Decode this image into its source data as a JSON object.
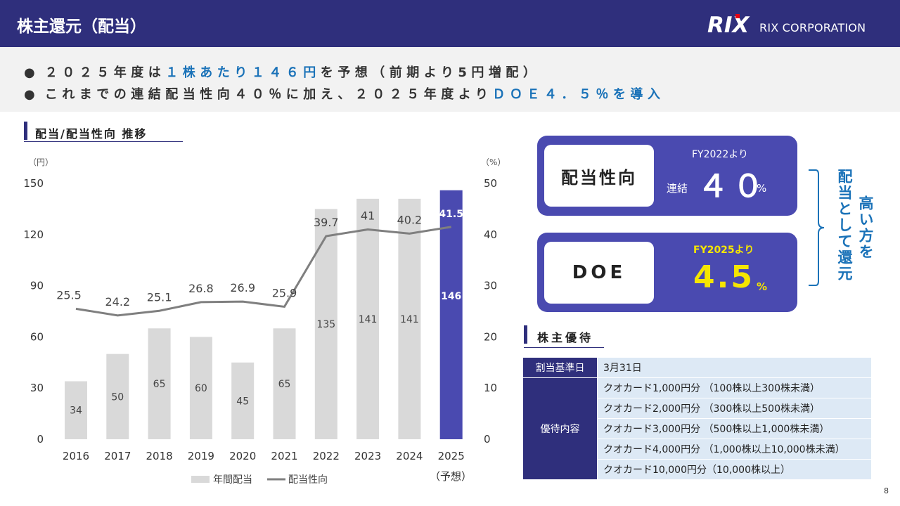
{
  "header": {
    "title": "株主還元（配当）",
    "logo_text": "RIX CORPORATION",
    "logo_letters": "RIX"
  },
  "bullets": {
    "b1": {
      "pre": "２０２５年度は",
      "hl": "１株あたり１４６円",
      "post": "を予想（前期より5円増配）"
    },
    "b2": {
      "pre": "これまでの連結配当性向４０％に加え、２０２５年度より",
      "hl": "ＤＯＥ４．５％を導入",
      "post": ""
    }
  },
  "chart_section": {
    "title": "配当/配当性向 推移"
  },
  "chart_data": {
    "type": "bar+line",
    "categories": [
      "2016",
      "2017",
      "2018",
      "2019",
      "2020",
      "2021",
      "2022",
      "2023",
      "2024",
      "2025"
    ],
    "forecast_note": "（予想）",
    "series": [
      {
        "name": "年間配当",
        "type": "bar",
        "axis": "left",
        "values": [
          34,
          50,
          65,
          60,
          45,
          65,
          135,
          141,
          141,
          146
        ],
        "color": "#d9d9d9",
        "highlight_color": "#4a4ab0"
      },
      {
        "name": "配当性向",
        "type": "line",
        "axis": "right",
        "values": [
          25.5,
          24.2,
          25.1,
          26.8,
          26.9,
          25.9,
          39.7,
          41,
          40.2,
          41.5
        ],
        "color": "#7f7f7f"
      }
    ],
    "y_left": {
      "unit": "（円）",
      "min": 0,
      "max": 150,
      "ticks": [
        0,
        30,
        60,
        90,
        120,
        150
      ]
    },
    "y_right": {
      "unit": "（%）",
      "min": 0,
      "max": 50,
      "ticks": [
        0,
        10,
        20,
        30,
        40,
        50
      ]
    },
    "legend_position": "bottom",
    "grid": false
  },
  "payout": {
    "label": "配当性向",
    "note": "FY2022より",
    "prefix": "連結",
    "value": "４０",
    "unit": "%"
  },
  "doe": {
    "label": "DOE",
    "note": "FY2025より",
    "value": "4.5",
    "unit": "%"
  },
  "side_text": {
    "col1": "配当として還元",
    "col2": "高い方を"
  },
  "benefit": {
    "title": "株主優待",
    "date_label": "割当基準日",
    "date_value": "3月31日",
    "content_label": "優待内容",
    "items": [
      "クオカード1,000円分 （100株以上300株未満）",
      "クオカード2,000円分 （300株以上500株未満）",
      "クオカード3,000円分 （500株以上1,000株未満）",
      "クオカード4,000円分 （1,000株以上10,000株未満）",
      "クオカード10,000円分（10,000株以上）"
    ]
  },
  "page_number": "8"
}
